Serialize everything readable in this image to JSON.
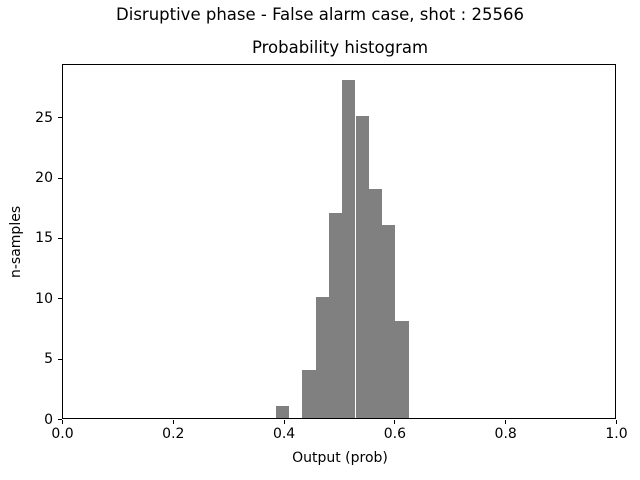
{
  "chart_data": {
    "type": "bar",
    "subtype": "histogram",
    "suptitle": "Disruptive phase - False alarm case, shot : 25566",
    "title": "Probability histogram",
    "xlabel": "Output (prob)",
    "ylabel": "n-samples",
    "xlim": [
      0.0,
      1.0
    ],
    "ylim": [
      0,
      29.4
    ],
    "grid": false,
    "legend_position": "none",
    "bar_color": "#808080",
    "axis_color": "#000000",
    "background_color": "#ffffff",
    "bin_edges": [
      0.384,
      0.408,
      0.432,
      0.456,
      0.48,
      0.504,
      0.528,
      0.552,
      0.576,
      0.6,
      0.624
    ],
    "counts": [
      1,
      0,
      4,
      10,
      17,
      28,
      25,
      19,
      16,
      8
    ],
    "total_samples": 128,
    "xticks": {
      "values": [
        0.0,
        0.2,
        0.4,
        0.6,
        0.8,
        1.0
      ],
      "labels": [
        "0.0",
        "0.2",
        "0.4",
        "0.6",
        "0.8",
        "1.0"
      ]
    },
    "yticks": {
      "values": [
        0,
        5,
        10,
        15,
        20,
        25
      ],
      "labels": [
        "0",
        "5",
        "10",
        "15",
        "20",
        "25"
      ]
    }
  }
}
